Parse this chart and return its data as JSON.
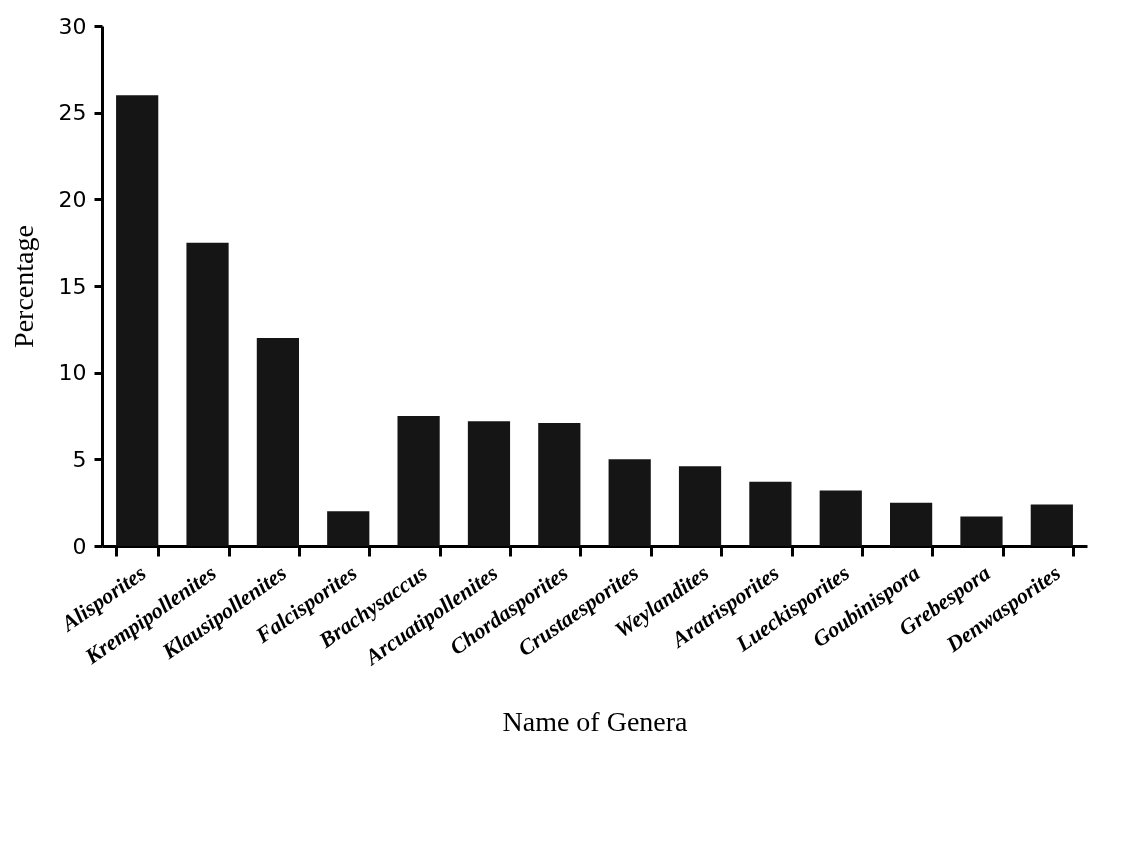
{
  "chart_data": {
    "type": "bar",
    "xlabel": "Name of Genera",
    "ylabel": "Percentage",
    "categories": [
      "Alisporites",
      "Krempipollenites",
      "Klausipollenites",
      "Falcisporites",
      "Brachysaccus",
      "Arcuatipollenites",
      "Chordasporites",
      "Crustaesporites",
      "Weylandites",
      "Aratrisporites",
      "Lueckisporites",
      "Goubinispora",
      "Grebespora",
      "Denwasporites"
    ],
    "values": [
      26,
      17.5,
      12,
      2,
      7.5,
      7.2,
      7.1,
      5,
      4.6,
      3.7,
      3.2,
      2.5,
      1.7,
      2.4
    ],
    "color": "#151515",
    "ylim": [
      0,
      30
    ],
    "yticks": [
      0,
      5,
      10,
      15,
      20,
      25,
      30
    ],
    "grid": false
  }
}
